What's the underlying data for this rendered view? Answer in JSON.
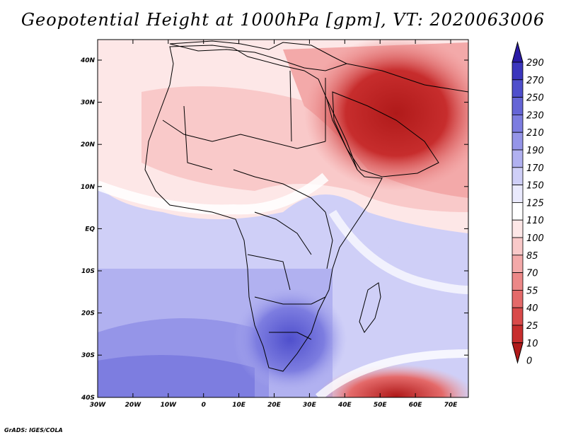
{
  "title": "Geopotential Height at 1000hPa [gpm], VT: 2020063006",
  "footer": "GrADS: IGES/COLA",
  "lat_labels": [
    "40N",
    "30N",
    "20N",
    "10N",
    "EQ",
    "10S",
    "20S",
    "30S",
    "40S"
  ],
  "lon_labels": [
    "30W",
    "20W",
    "10W",
    "0",
    "10E",
    "20E",
    "30E",
    "40E",
    "50E",
    "60E",
    "70E"
  ],
  "colorbar": {
    "levels": [
      "290",
      "270",
      "250",
      "230",
      "210",
      "190",
      "170",
      "150",
      "125",
      "110",
      "100",
      "85",
      "70",
      "55",
      "40",
      "25",
      "10",
      "0"
    ],
    "colors": [
      "#2a1aa6",
      "#3b36bd",
      "#4f4fcc",
      "#6565d6",
      "#7d7de0",
      "#9595e8",
      "#b1b1f0",
      "#cfcff7",
      "#eaeafd",
      "#ffffff",
      "#fde7e7",
      "#f9c9c9",
      "#f3a9a9",
      "#ec8888",
      "#e46a6a",
      "#d94a4a",
      "#c72d2d",
      "#b01a1a"
    ]
  },
  "map": {
    "ocean_color": "#dcdcfa",
    "land_color": "#f9d4d4",
    "border_color": "#000000"
  }
}
